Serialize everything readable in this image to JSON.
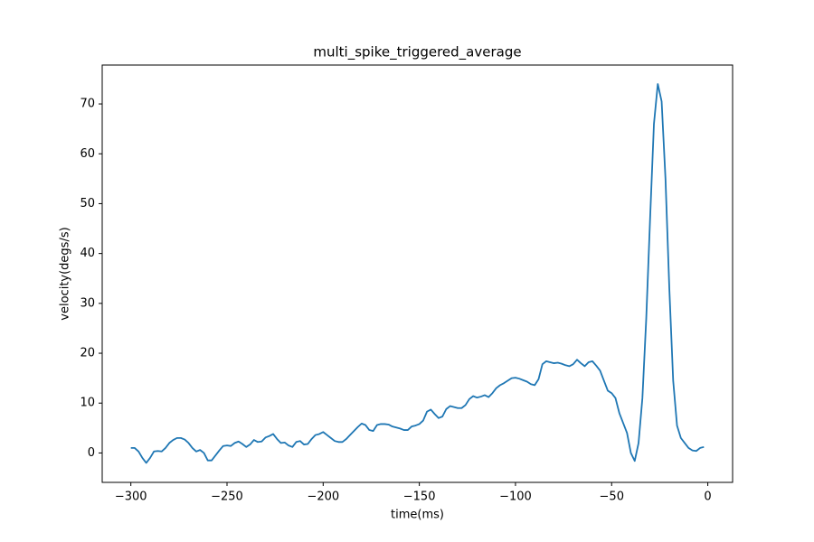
{
  "chart_data": {
    "type": "line",
    "title": "multi_spike_triggered_average",
    "x_label": "time(ms)",
    "y_label": "velocity(degs/s)",
    "color": "#1f77b4",
    "x": [
      -300,
      -298,
      -296,
      -294,
      -292,
      -290,
      -288,
      -286,
      -284,
      -282,
      -280,
      -278,
      -276,
      -274,
      -272,
      -270,
      -268,
      -266,
      -264,
      -262,
      -260,
      -258,
      -256,
      -254,
      -252,
      -250,
      -248,
      -246,
      -244,
      -242,
      -240,
      -238,
      -236,
      -234,
      -232,
      -230,
      -228,
      -226,
      -224,
      -222,
      -220,
      -218,
      -216,
      -214,
      -212,
      -210,
      -208,
      -206,
      -204,
      -202,
      -200,
      -198,
      -196,
      -194,
      -192,
      -190,
      -188,
      -186,
      -184,
      -182,
      -180,
      -178,
      -176,
      -174,
      -172,
      -170,
      -168,
      -166,
      -164,
      -162,
      -160,
      -158,
      -156,
      -154,
      -152,
      -150,
      -148,
      -146,
      -144,
      -142,
      -140,
      -138,
      -136,
      -134,
      -132,
      -130,
      -128,
      -126,
      -124,
      -122,
      -120,
      -118,
      -116,
      -114,
      -112,
      -110,
      -108,
      -106,
      -104,
      -102,
      -100,
      -98,
      -96,
      -94,
      -92,
      -90,
      -88,
      -86,
      -84,
      -82,
      -80,
      -78,
      -76,
      -74,
      -72,
      -70,
      -68,
      -66,
      -64,
      -62,
      -60,
      -58,
      -56,
      -54,
      -52,
      -50,
      -48,
      -46,
      -44,
      -42,
      -40,
      -38,
      -36,
      -34,
      -32,
      -30,
      -28,
      -26,
      -24,
      -22,
      -20,
      -18,
      -16,
      -14,
      -12,
      -10,
      -8,
      -6,
      -4,
      -2
    ],
    "values": [
      1,
      1,
      0.3,
      -1,
      -2,
      -1,
      0.3,
      0.4,
      0.3,
      1,
      2,
      2.6,
      3,
      3,
      2.7,
      2,
      1,
      0.3,
      0.6,
      0,
      -1.5,
      -1.5,
      -0.5,
      0.5,
      1.4,
      1.5,
      1.4,
      2,
      2.3,
      1.8,
      1.2,
      1.7,
      2.6,
      2.2,
      2.3,
      3.1,
      3.4,
      3.8,
      2.8,
      2,
      2.1,
      1.5,
      1.2,
      2.2,
      2.4,
      1.7,
      1.8,
      2.8,
      3.6,
      3.8,
      4.2,
      3.6,
      3,
      2.4,
      2.2,
      2.2,
      2.8,
      3.6,
      4.4,
      5.2,
      5.9,
      5.6,
      4.6,
      4.4,
      5.6,
      5.8,
      5.8,
      5.7,
      5.3,
      5.1,
      4.9,
      4.6,
      4.6,
      5.3,
      5.5,
      5.8,
      6.5,
      8.3,
      8.7,
      7.8,
      7,
      7.3,
      8.8,
      9.4,
      9.2,
      9,
      9,
      9.6,
      10.8,
      11.4,
      11.1,
      11.3,
      11.6,
      11.2,
      12,
      13,
      13.6,
      14,
      14.5,
      15,
      15.1,
      14.9,
      14.6,
      14.3,
      13.8,
      13.6,
      14.8,
      17.8,
      18.4,
      18.2,
      18,
      18.1,
      17.9,
      17.6,
      17.4,
      17.8,
      18.7,
      18,
      17.4,
      18.2,
      18.4,
      17.5,
      16.5,
      14.5,
      12.5,
      12,
      11,
      8,
      6,
      4,
      0,
      -1.6,
      2,
      11,
      27,
      47,
      66,
      74,
      70.5,
      55,
      33,
      14.5,
      5.5,
      3,
      2,
      1,
      0.5,
      0.4,
      1,
      1.2
    ],
    "xlim": [
      -314.9,
      12.9
    ],
    "ylim": [
      -5.9,
      77.8
    ],
    "xticks": [
      {
        "value": -300,
        "label": "−300"
      },
      {
        "value": -250,
        "label": "−250"
      },
      {
        "value": -200,
        "label": "−200"
      },
      {
        "value": -150,
        "label": "−150"
      },
      {
        "value": -100,
        "label": "−100"
      },
      {
        "value": -50,
        "label": "−50"
      },
      0
    ],
    "yticks": [
      0,
      10,
      20,
      30,
      40,
      50,
      60,
      70
    ]
  }
}
